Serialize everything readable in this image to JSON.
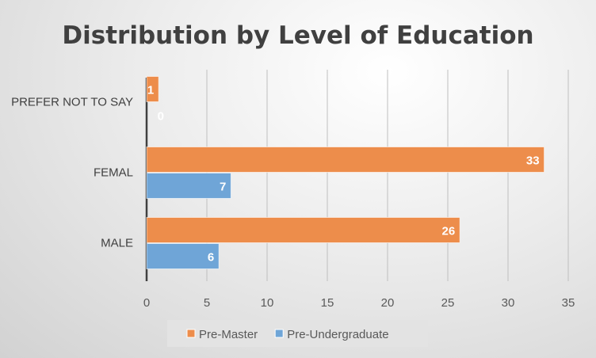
{
  "chart_data": {
    "type": "bar",
    "orientation": "horizontal",
    "title": "Distribution by Level of Education",
    "categories": [
      "PREFER NOT TO SAY",
      "FEMAL",
      "MALE"
    ],
    "series": [
      {
        "name": "Pre-Master",
        "values": [
          1,
          33,
          26
        ],
        "color": "#ED8D4B"
      },
      {
        "name": "Pre-Undergraduate",
        "values": [
          0,
          7,
          6
        ],
        "color": "#6FA5D7"
      }
    ],
    "xlim": [
      0,
      35
    ],
    "xticks": [
      0,
      5,
      10,
      15,
      20,
      25,
      30,
      35
    ],
    "grid": true,
    "legend": "bottom",
    "data_labels": true
  }
}
